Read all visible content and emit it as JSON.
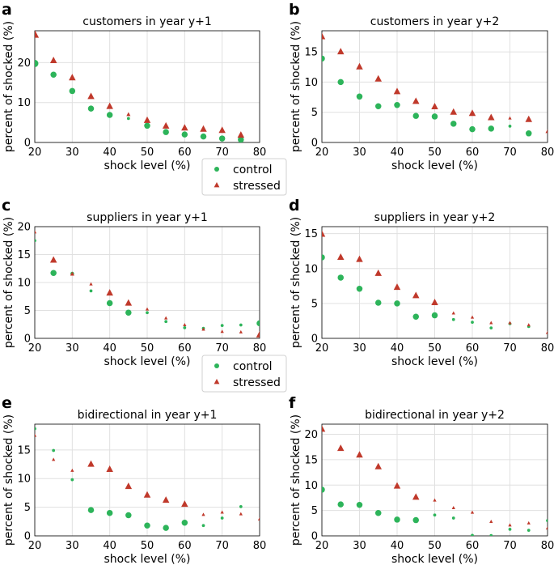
{
  "colors": {
    "control": "#2db45a",
    "stressed": "#c0392b"
  },
  "legend": [
    {
      "series": "control",
      "label": "control",
      "marker": "circle"
    },
    {
      "series": "stressed",
      "label": "stressed",
      "marker": "triangle"
    }
  ],
  "chart_data": [
    {
      "panel": "a",
      "type": "scatter",
      "title": "customers in year y+1",
      "xlabel": "shock level (%)",
      "ylabel": "percent of shocked (%)",
      "xlim": [
        20,
        80
      ],
      "ylim": [
        0,
        28
      ],
      "xticks": [
        20,
        30,
        40,
        50,
        60,
        70,
        80
      ],
      "yticks": [
        0,
        10,
        20
      ],
      "grid": true,
      "legend": "below",
      "series": [
        {
          "name": "control",
          "marker": "circle",
          "points": [
            [
              20,
              19.8,
              6
            ],
            [
              25,
              17,
              5
            ],
            [
              30,
              12.9,
              5
            ],
            [
              35,
              8.5,
              5
            ],
            [
              40,
              6.9,
              5
            ],
            [
              45,
              6.0,
              2.5
            ],
            [
              50,
              4.2,
              5
            ],
            [
              55,
              2.6,
              5
            ],
            [
              60,
              2.0,
              5
            ],
            [
              65,
              1.5,
              5
            ],
            [
              70,
              1.0,
              5
            ],
            [
              75,
              0.7,
              5
            ]
          ]
        },
        {
          "name": "stressed",
          "marker": "triangle",
          "points": [
            [
              20,
              27,
              6
            ],
            [
              25,
              20.5,
              5
            ],
            [
              30,
              16.2,
              5
            ],
            [
              35,
              11.5,
              5
            ],
            [
              40,
              9.0,
              5
            ],
            [
              45,
              7.0,
              3
            ],
            [
              50,
              5.5,
              5
            ],
            [
              55,
              4.1,
              5
            ],
            [
              60,
              3.6,
              5
            ],
            [
              65,
              3.3,
              5
            ],
            [
              70,
              3.0,
              5
            ],
            [
              75,
              1.8,
              5
            ]
          ]
        }
      ]
    },
    {
      "panel": "b",
      "type": "scatter",
      "title": "customers in year y+2",
      "xlabel": "shock level (%)",
      "ylabel": "percent of shocked (%)",
      "xlim": [
        20,
        80
      ],
      "ylim": [
        0,
        18.5
      ],
      "xticks": [
        20,
        30,
        40,
        50,
        60,
        70,
        80
      ],
      "yticks": [
        0,
        5,
        10,
        15
      ],
      "grid": true,
      "series": [
        {
          "name": "control",
          "marker": "circle",
          "points": [
            [
              20,
              13.9,
              5
            ],
            [
              25,
              10.0,
              5
            ],
            [
              30,
              7.6,
              5
            ],
            [
              35,
              6.0,
              5
            ],
            [
              40,
              6.2,
              5
            ],
            [
              45,
              4.4,
              5
            ],
            [
              50,
              4.3,
              5
            ],
            [
              55,
              3.1,
              5
            ],
            [
              60,
              2.2,
              5
            ],
            [
              65,
              2.3,
              5
            ],
            [
              70,
              2.7,
              2.5
            ],
            [
              75,
              1.5,
              5
            ]
          ]
        },
        {
          "name": "stressed",
          "marker": "triangle",
          "points": [
            [
              20,
              17.5,
              5
            ],
            [
              25,
              15.0,
              5
            ],
            [
              30,
              12.5,
              5
            ],
            [
              35,
              10.5,
              5
            ],
            [
              40,
              8.4,
              5
            ],
            [
              45,
              6.8,
              5
            ],
            [
              50,
              5.9,
              5
            ],
            [
              55,
              5.0,
              5
            ],
            [
              60,
              4.8,
              5
            ],
            [
              65,
              4.1,
              5
            ],
            [
              70,
              4.0,
              2.5
            ],
            [
              75,
              3.8,
              5
            ],
            [
              80,
              1.8,
              3
            ]
          ]
        }
      ]
    },
    {
      "panel": "c",
      "type": "scatter",
      "title": "suppliers in year y+1",
      "xlabel": "shock level (%)",
      "ylabel": "percent of shocked (%)",
      "xlim": [
        20,
        80
      ],
      "ylim": [
        0,
        20
      ],
      "xticks": [
        20,
        30,
        40,
        50,
        60,
        70,
        80
      ],
      "yticks": [
        0,
        5,
        10,
        15,
        20
      ],
      "grid": true,
      "legend": "below",
      "series": [
        {
          "name": "control",
          "marker": "circle",
          "points": [
            [
              20,
              17.5,
              2.5
            ],
            [
              25,
              11.7,
              5
            ],
            [
              30,
              11.6,
              3
            ],
            [
              35,
              8.5,
              2.5
            ],
            [
              40,
              6.3,
              5
            ],
            [
              45,
              4.6,
              5
            ],
            [
              50,
              4.6,
              2.5
            ],
            [
              55,
              3.0,
              2.5
            ],
            [
              60,
              1.9,
              2.5
            ],
            [
              65,
              1.8,
              2.5
            ],
            [
              70,
              2.3,
              2.5
            ],
            [
              75,
              2.4,
              2.5
            ],
            [
              80,
              2.7,
              5
            ]
          ]
        },
        {
          "name": "stressed",
          "marker": "triangle",
          "points": [
            [
              20,
              19.0,
              2.5
            ],
            [
              25,
              14.0,
              5
            ],
            [
              30,
              11.5,
              3
            ],
            [
              35,
              9.7,
              2.5
            ],
            [
              40,
              8.1,
              5
            ],
            [
              45,
              6.3,
              5
            ],
            [
              50,
              5.2,
              2.5
            ],
            [
              55,
              3.6,
              2.5
            ],
            [
              60,
              2.4,
              2.5
            ],
            [
              65,
              1.6,
              2.5
            ],
            [
              70,
              1.2,
              2.5
            ],
            [
              75,
              1.1,
              2.5
            ],
            [
              80,
              0.6,
              5
            ]
          ]
        }
      ]
    },
    {
      "panel": "d",
      "type": "scatter",
      "title": "suppliers in year y+2",
      "xlabel": "shock level (%)",
      "ylabel": "percent of shocked (%)",
      "xlim": [
        20,
        80
      ],
      "ylim": [
        0,
        16
      ],
      "xticks": [
        20,
        30,
        40,
        50,
        60,
        70,
        80
      ],
      "yticks": [
        0,
        5,
        10,
        15
      ],
      "grid": true,
      "series": [
        {
          "name": "control",
          "marker": "circle",
          "points": [
            [
              20,
              11.6,
              5
            ],
            [
              25,
              8.7,
              5
            ],
            [
              30,
              7.1,
              5
            ],
            [
              35,
              5.1,
              5
            ],
            [
              40,
              5.0,
              5
            ],
            [
              45,
              3.1,
              5
            ],
            [
              50,
              3.3,
              5
            ],
            [
              55,
              2.7,
              2.5
            ],
            [
              60,
              2.3,
              2.5
            ],
            [
              65,
              1.5,
              2.5
            ],
            [
              70,
              2.1,
              2.5
            ],
            [
              75,
              1.7,
              2.5
            ]
          ]
        },
        {
          "name": "stressed",
          "marker": "triangle",
          "points": [
            [
              20,
              14.9,
              5
            ],
            [
              25,
              11.6,
              5
            ],
            [
              30,
              11.3,
              5
            ],
            [
              35,
              9.3,
              5
            ],
            [
              40,
              7.3,
              5
            ],
            [
              45,
              6.1,
              5
            ],
            [
              50,
              5.1,
              5
            ],
            [
              55,
              3.6,
              2.5
            ],
            [
              60,
              3.0,
              2.5
            ],
            [
              65,
              2.2,
              2.5
            ],
            [
              70,
              2.2,
              2.5
            ],
            [
              75,
              1.9,
              2.5
            ],
            [
              80,
              0.8,
              2.5
            ]
          ]
        }
      ]
    },
    {
      "panel": "e",
      "type": "scatter",
      "title": "bidirectional in year y+1",
      "xlabel": "shock level (%)",
      "ylabel": "percent of shocked (%)",
      "xlim": [
        20,
        80
      ],
      "ylim": [
        0,
        19.5
      ],
      "xticks": [
        20,
        30,
        40,
        50,
        60,
        70,
        80
      ],
      "yticks": [
        0,
        5,
        10,
        15
      ],
      "grid": true,
      "series": [
        {
          "name": "control",
          "marker": "circle",
          "points": [
            [
              20,
              18.7,
              2.5
            ],
            [
              25,
              14.9,
              2.5
            ],
            [
              30,
              9.8,
              2.5
            ],
            [
              35,
              4.5,
              5
            ],
            [
              40,
              4.0,
              5
            ],
            [
              45,
              3.6,
              5
            ],
            [
              50,
              1.8,
              5
            ],
            [
              55,
              1.4,
              5
            ],
            [
              60,
              2.3,
              5
            ],
            [
              65,
              1.8,
              2.5
            ],
            [
              70,
              3.1,
              2.5
            ],
            [
              75,
              5.1,
              2.5
            ]
          ]
        },
        {
          "name": "stressed",
          "marker": "triangle",
          "points": [
            [
              20,
              17.5,
              2.5
            ],
            [
              25,
              13.3,
              2.5
            ],
            [
              30,
              11.4,
              2.5
            ],
            [
              35,
              12.5,
              5
            ],
            [
              40,
              11.6,
              5
            ],
            [
              45,
              8.6,
              5
            ],
            [
              50,
              7.1,
              5
            ],
            [
              55,
              6.2,
              5
            ],
            [
              60,
              5.5,
              5
            ],
            [
              65,
              3.7,
              2.5
            ],
            [
              70,
              4.1,
              2.5
            ],
            [
              75,
              3.8,
              2.5
            ],
            [
              80,
              2.9,
              2.5
            ]
          ]
        }
      ]
    },
    {
      "panel": "f",
      "type": "scatter",
      "title": "bidirectional in year y+2",
      "xlabel": "shock level (%)",
      "ylabel": "percent of shocked (%)",
      "xlim": [
        20,
        80
      ],
      "ylim": [
        0,
        22
      ],
      "xticks": [
        20,
        30,
        40,
        50,
        60,
        70,
        80
      ],
      "yticks": [
        0,
        5,
        10,
        15,
        20
      ],
      "grid": true,
      "series": [
        {
          "name": "control",
          "marker": "circle",
          "points": [
            [
              20,
              9.1,
              5
            ],
            [
              25,
              6.2,
              5
            ],
            [
              30,
              6.1,
              5
            ],
            [
              35,
              4.5,
              5
            ],
            [
              40,
              3.2,
              5
            ],
            [
              45,
              3.1,
              5
            ],
            [
              50,
              4.1,
              2.5
            ],
            [
              55,
              3.5,
              2.5
            ],
            [
              60,
              0.1,
              2.5
            ],
            [
              65,
              0.05,
              2.5
            ],
            [
              70,
              1.3,
              2.5
            ],
            [
              75,
              1.1,
              2.5
            ],
            [
              80,
              3.0,
              2.5
            ]
          ]
        },
        {
          "name": "stressed",
          "marker": "triangle",
          "points": [
            [
              20,
              21.0,
              5
            ],
            [
              25,
              17.2,
              5
            ],
            [
              30,
              15.9,
              5
            ],
            [
              35,
              13.6,
              5
            ],
            [
              40,
              9.8,
              5
            ],
            [
              45,
              7.6,
              5
            ],
            [
              50,
              7.0,
              2.5
            ],
            [
              55,
              5.5,
              2.5
            ],
            [
              60,
              4.6,
              2.5
            ],
            [
              65,
              2.8,
              2.5
            ],
            [
              70,
              2.1,
              2.5
            ],
            [
              75,
              2.5,
              2.5
            ],
            [
              80,
              1.5,
              2.5
            ]
          ]
        }
      ]
    }
  ]
}
